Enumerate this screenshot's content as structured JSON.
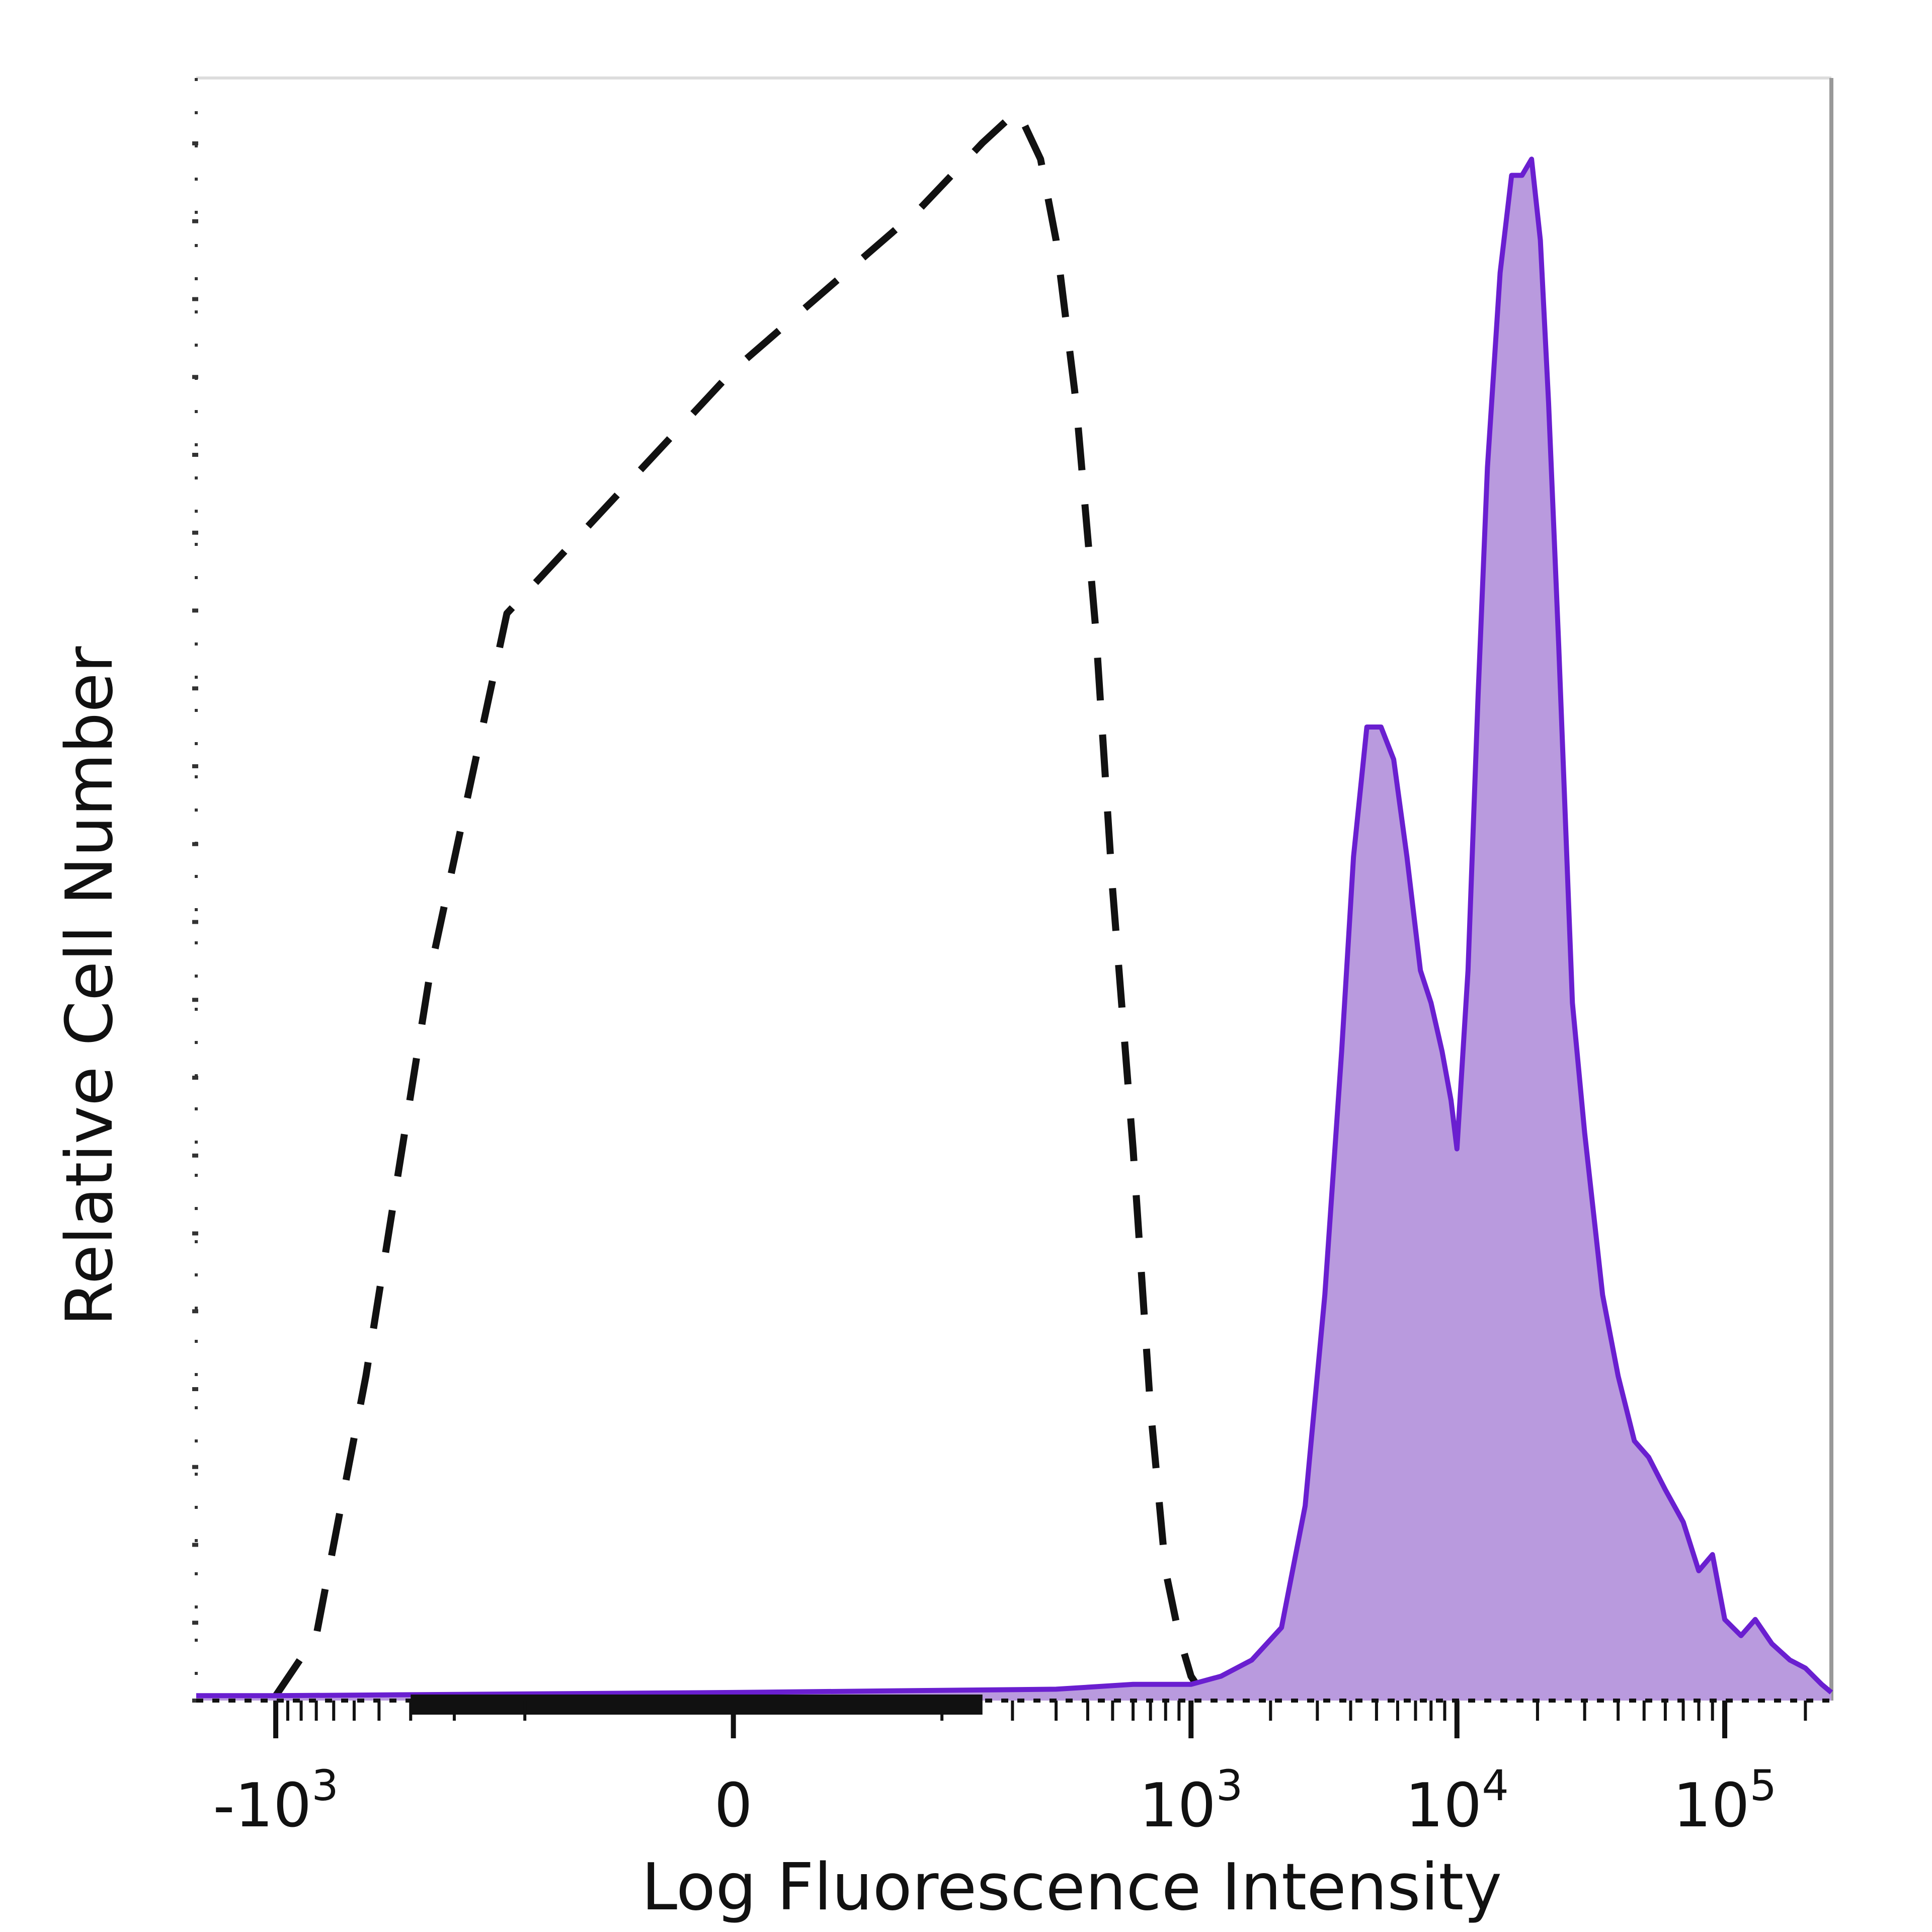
{
  "chart_data": {
    "type": "area",
    "xlabel": "Log Fluorescence Intensity",
    "ylabel": "Relative Cell Number",
    "x_scale": "biexponential",
    "xlim": [
      -2000,
      250000
    ],
    "ylim": [
      0,
      100
    ],
    "grid": false,
    "x_ticks": [
      {
        "value": -1000,
        "base": "-10",
        "exp": "3"
      },
      {
        "value": 0,
        "base": "0",
        "exp": ""
      },
      {
        "value": 1000,
        "base": "10",
        "exp": "3"
      },
      {
        "value": 10000,
        "base": "10",
        "exp": "4"
      },
      {
        "value": 100000,
        "base": "10",
        "exp": "5"
      }
    ],
    "series": [
      {
        "style": "dashed",
        "color": "#111111",
        "fill": "none",
        "x": [
          -1000,
          -700,
          -450,
          -250,
          -120,
          0,
          80,
          150,
          210,
          260,
          300,
          360,
          430,
          500,
          600,
          700,
          800,
          900,
          1000,
          1100,
          1200
        ],
        "y": [
          0.3,
          4,
          20,
          45,
          67,
          82,
          92,
          96,
          98,
          95,
          90,
          80,
          66,
          50,
          34,
          18,
          8,
          4,
          1.5,
          0.5,
          0
        ]
      },
      {
        "style": "solid-filled",
        "color": "#6a1fd0",
        "fill": "#b99ade",
        "x": [
          -2000,
          -1000,
          0,
          300,
          600,
          1000,
          1300,
          1700,
          2200,
          2700,
          3200,
          3700,
          4100,
          4600,
          5200,
          5800,
          6500,
          7300,
          8000,
          8800,
          9500,
          10000,
          11000,
          12000,
          13000,
          14500,
          16000,
          17500,
          19000,
          20500,
          22000,
          24000,
          27000,
          30000,
          35000,
          40000,
          46000,
          52000,
          60000,
          70000,
          80000,
          90000,
          100000,
          115000,
          130000,
          150000,
          175000,
          200000,
          230000,
          250000
        ],
        "y": [
          0.3,
          0.3,
          0.5,
          0.7,
          1.0,
          1.0,
          1.5,
          2.5,
          4.5,
          12,
          25,
          40,
          52,
          60,
          60,
          58,
          52,
          45,
          43,
          40,
          37,
          34,
          45,
          62,
          76,
          88,
          94,
          94,
          95,
          90,
          80,
          65,
          43,
          35,
          25,
          20,
          16,
          15,
          13,
          11,
          8,
          9,
          5,
          4,
          5,
          3.5,
          2.5,
          2,
          1,
          0.5
        ]
      }
    ]
  }
}
